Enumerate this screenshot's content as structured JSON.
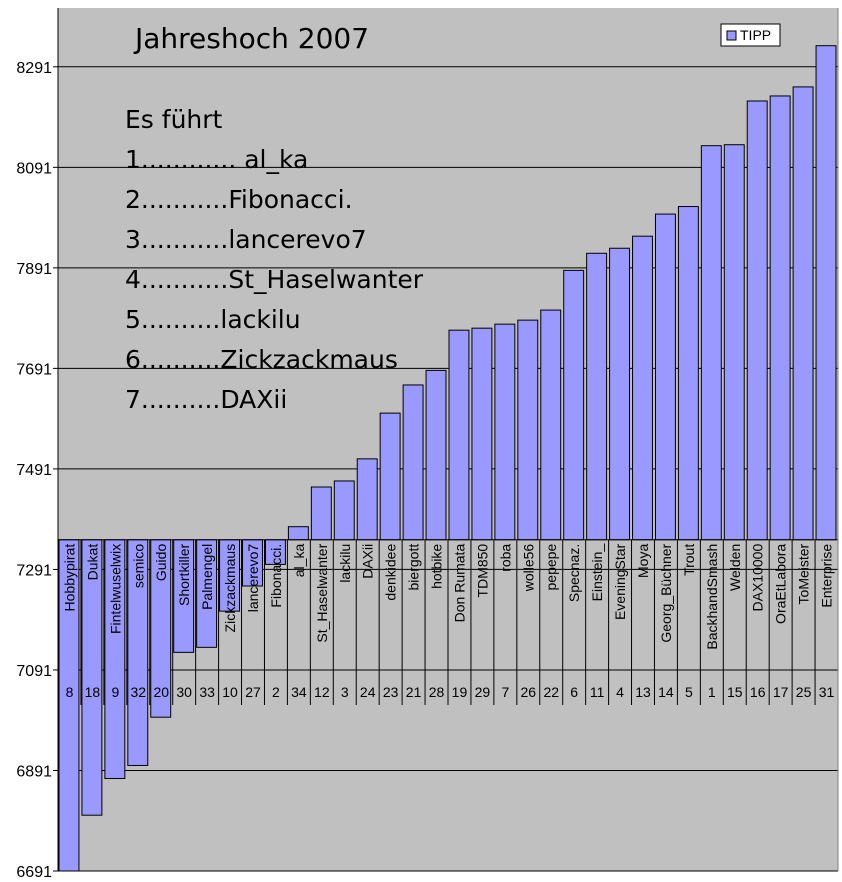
{
  "chart_data": {
    "type": "bar",
    "title": "Jahreshoch 2007",
    "legend": {
      "position": "top-right",
      "entries": [
        "TIPP"
      ]
    },
    "bar_color": "#9999ff",
    "background_color": "#c0c0c0",
    "grid": true,
    "ylim": [
      6691,
      8408
    ],
    "yticks": [
      6691,
      6891,
      7091,
      7291,
      7491,
      7691,
      7891,
      8091,
      8291
    ],
    "crosses_at": 7350,
    "categories": [
      "Hobbypirat",
      "Dukat",
      "Fintelwuselwix",
      "semico",
      "Guido",
      "Shortkiller",
      "Palmengel",
      "Zickzackmaus",
      "lancerevo7",
      "Fibonacci.",
      "al_ka",
      "St_Haselwanter",
      "lackilu",
      "DAXii",
      "denkidee",
      "biergott",
      "hotbike",
      "Don Rumata",
      "TDM850",
      "roba",
      "wolle56",
      "pepepe",
      "Specnaz.",
      "Einstein_",
      "EveningStar",
      "Moya",
      "Georg_Büchner",
      "Trout",
      "BackhandSmash",
      "Welden",
      "DAX10000",
      "OraEtLabora",
      "ToMeister",
      "Enterprise"
    ],
    "ranks": [
      "8",
      "18",
      "9",
      "32",
      "20",
      "30",
      "33",
      "10",
      "27",
      "2",
      "34",
      "12",
      "3",
      "24",
      "23",
      "21",
      "28",
      "19",
      "29",
      "7",
      "26",
      "22",
      "6",
      "11",
      "4",
      "13",
      "14",
      "5",
      "1",
      "15",
      "16",
      "17",
      "25",
      "31"
    ],
    "series": [
      {
        "name": "TIPP",
        "values": [
          6691,
          6802,
          6875,
          6901,
          6997,
          7126,
          7136,
          7208,
          7258,
          7301,
          7376,
          7455,
          7467,
          7511,
          7602,
          7658,
          7687,
          7767,
          7771,
          7779,
          7787,
          7807,
          7886,
          7920,
          7930,
          7954,
          7998,
          8013,
          8134,
          8136,
          8223,
          8233,
          8251,
          8333
        ]
      }
    ],
    "annotation": {
      "heading": "Es führt",
      "lines": [
        "1............ al_ka",
        "2...........Fibonacci.",
        "3...........lancerevo7",
        "4...........St_Haselwanter",
        "5..........lackilu",
        "6..........Zickzackmaus",
        "7..........DAXii"
      ]
    }
  }
}
